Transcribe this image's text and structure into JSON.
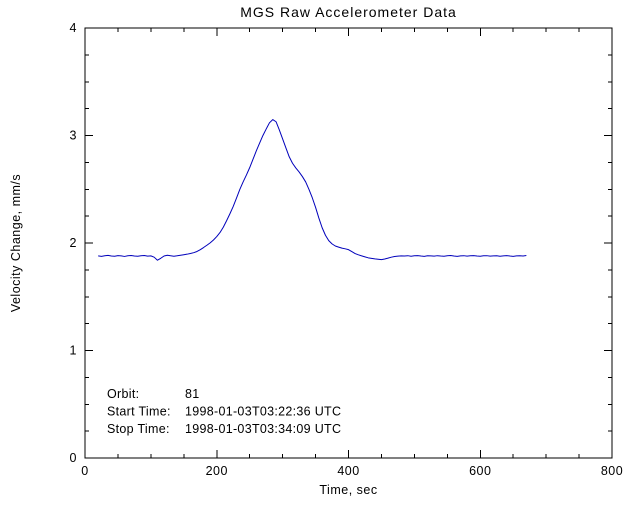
{
  "title": "MGS Raw Accelerometer Data",
  "chart_data": {
    "type": "line",
    "title": "MGS Raw Accelerometer Data",
    "xlabel": "Time, sec",
    "ylabel": "Velocity Change, mm/s",
    "xlim": [
      0,
      800
    ],
    "ylim": [
      0,
      4
    ],
    "xticks": [
      0,
      200,
      400,
      600,
      800
    ],
    "yticks": [
      0,
      1,
      2,
      3,
      4
    ],
    "x_minor_step": 50,
    "y_minor_step": 0.25,
    "grid": false,
    "legend": "none",
    "line_color": "#0000bb",
    "axis_color": "#000000",
    "background_color": "#ffffff",
    "series": [
      {
        "name": "velocity_change",
        "points": [
          [
            20,
            1.88
          ],
          [
            25,
            1.876
          ],
          [
            30,
            1.881
          ],
          [
            35,
            1.885
          ],
          [
            40,
            1.879
          ],
          [
            45,
            1.877
          ],
          [
            50,
            1.883
          ],
          [
            55,
            1.88
          ],
          [
            60,
            1.875
          ],
          [
            65,
            1.881
          ],
          [
            70,
            1.884
          ],
          [
            75,
            1.879
          ],
          [
            80,
            1.877
          ],
          [
            85,
            1.881
          ],
          [
            90,
            1.884
          ],
          [
            95,
            1.878
          ],
          [
            100,
            1.88
          ],
          [
            105,
            1.868
          ],
          [
            110,
            1.84
          ],
          [
            115,
            1.858
          ],
          [
            120,
            1.879
          ],
          [
            125,
            1.886
          ],
          [
            130,
            1.881
          ],
          [
            135,
            1.877
          ],
          [
            140,
            1.881
          ],
          [
            145,
            1.886
          ],
          [
            150,
            1.891
          ],
          [
            155,
            1.896
          ],
          [
            160,
            1.902
          ],
          [
            165,
            1.91
          ],
          [
            170,
            1.921
          ],
          [
            175,
            1.938
          ],
          [
            180,
            1.958
          ],
          [
            185,
            1.979
          ],
          [
            190,
            2.001
          ],
          [
            195,
            2.028
          ],
          [
            200,
            2.06
          ],
          [
            205,
            2.098
          ],
          [
            210,
            2.148
          ],
          [
            215,
            2.208
          ],
          [
            220,
            2.272
          ],
          [
            225,
            2.34
          ],
          [
            230,
            2.418
          ],
          [
            235,
            2.498
          ],
          [
            240,
            2.568
          ],
          [
            245,
            2.632
          ],
          [
            250,
            2.701
          ],
          [
            255,
            2.778
          ],
          [
            260,
            2.856
          ],
          [
            265,
            2.928
          ],
          [
            270,
            2.999
          ],
          [
            275,
            3.06
          ],
          [
            280,
            3.118
          ],
          [
            285,
            3.148
          ],
          [
            290,
            3.128
          ],
          [
            295,
            3.052
          ],
          [
            300,
            2.968
          ],
          [
            305,
            2.884
          ],
          [
            310,
            2.802
          ],
          [
            315,
            2.742
          ],
          [
            320,
            2.698
          ],
          [
            325,
            2.661
          ],
          [
            330,
            2.618
          ],
          [
            335,
            2.568
          ],
          [
            340,
            2.498
          ],
          [
            345,
            2.421
          ],
          [
            350,
            2.332
          ],
          [
            355,
            2.232
          ],
          [
            360,
            2.142
          ],
          [
            365,
            2.072
          ],
          [
            370,
            2.022
          ],
          [
            375,
            1.992
          ],
          [
            380,
            1.972
          ],
          [
            385,
            1.962
          ],
          [
            390,
            1.952
          ],
          [
            395,
            1.946
          ],
          [
            400,
            1.938
          ],
          [
            405,
            1.92
          ],
          [
            410,
            1.902
          ],
          [
            415,
            1.89
          ],
          [
            420,
            1.88
          ],
          [
            425,
            1.871
          ],
          [
            430,
            1.862
          ],
          [
            435,
            1.857
          ],
          [
            440,
            1.852
          ],
          [
            445,
            1.849
          ],
          [
            450,
            1.845
          ],
          [
            455,
            1.851
          ],
          [
            460,
            1.859
          ],
          [
            465,
            1.868
          ],
          [
            470,
            1.874
          ],
          [
            475,
            1.878
          ],
          [
            480,
            1.88
          ],
          [
            485,
            1.879
          ],
          [
            490,
            1.882
          ],
          [
            495,
            1.877
          ],
          [
            500,
            1.881
          ],
          [
            505,
            1.883
          ],
          [
            510,
            1.879
          ],
          [
            515,
            1.876
          ],
          [
            520,
            1.881
          ],
          [
            525,
            1.88
          ],
          [
            530,
            1.878
          ],
          [
            535,
            1.882
          ],
          [
            540,
            1.879
          ],
          [
            545,
            1.877
          ],
          [
            550,
            1.881
          ],
          [
            555,
            1.884
          ],
          [
            560,
            1.879
          ],
          [
            565,
            1.876
          ],
          [
            570,
            1.88
          ],
          [
            575,
            1.882
          ],
          [
            580,
            1.878
          ],
          [
            585,
            1.881
          ],
          [
            590,
            1.883
          ],
          [
            595,
            1.879
          ],
          [
            600,
            1.877
          ],
          [
            605,
            1.881
          ],
          [
            610,
            1.882
          ],
          [
            615,
            1.878
          ],
          [
            620,
            1.88
          ],
          [
            625,
            1.881
          ],
          [
            630,
            1.877
          ],
          [
            635,
            1.88
          ],
          [
            640,
            1.883
          ],
          [
            645,
            1.879
          ],
          [
            650,
            1.876
          ],
          [
            655,
            1.88
          ],
          [
            660,
            1.882
          ],
          [
            665,
            1.879
          ],
          [
            670,
            1.884
          ]
        ]
      }
    ],
    "annotations": [
      {
        "label": "Orbit:",
        "value": "81"
      },
      {
        "label": "Start Time:",
        "value": "1998-01-03T03:22:36 UTC"
      },
      {
        "label": "Stop Time:",
        "value": "1998-01-03T03:34:09 UTC"
      }
    ]
  }
}
